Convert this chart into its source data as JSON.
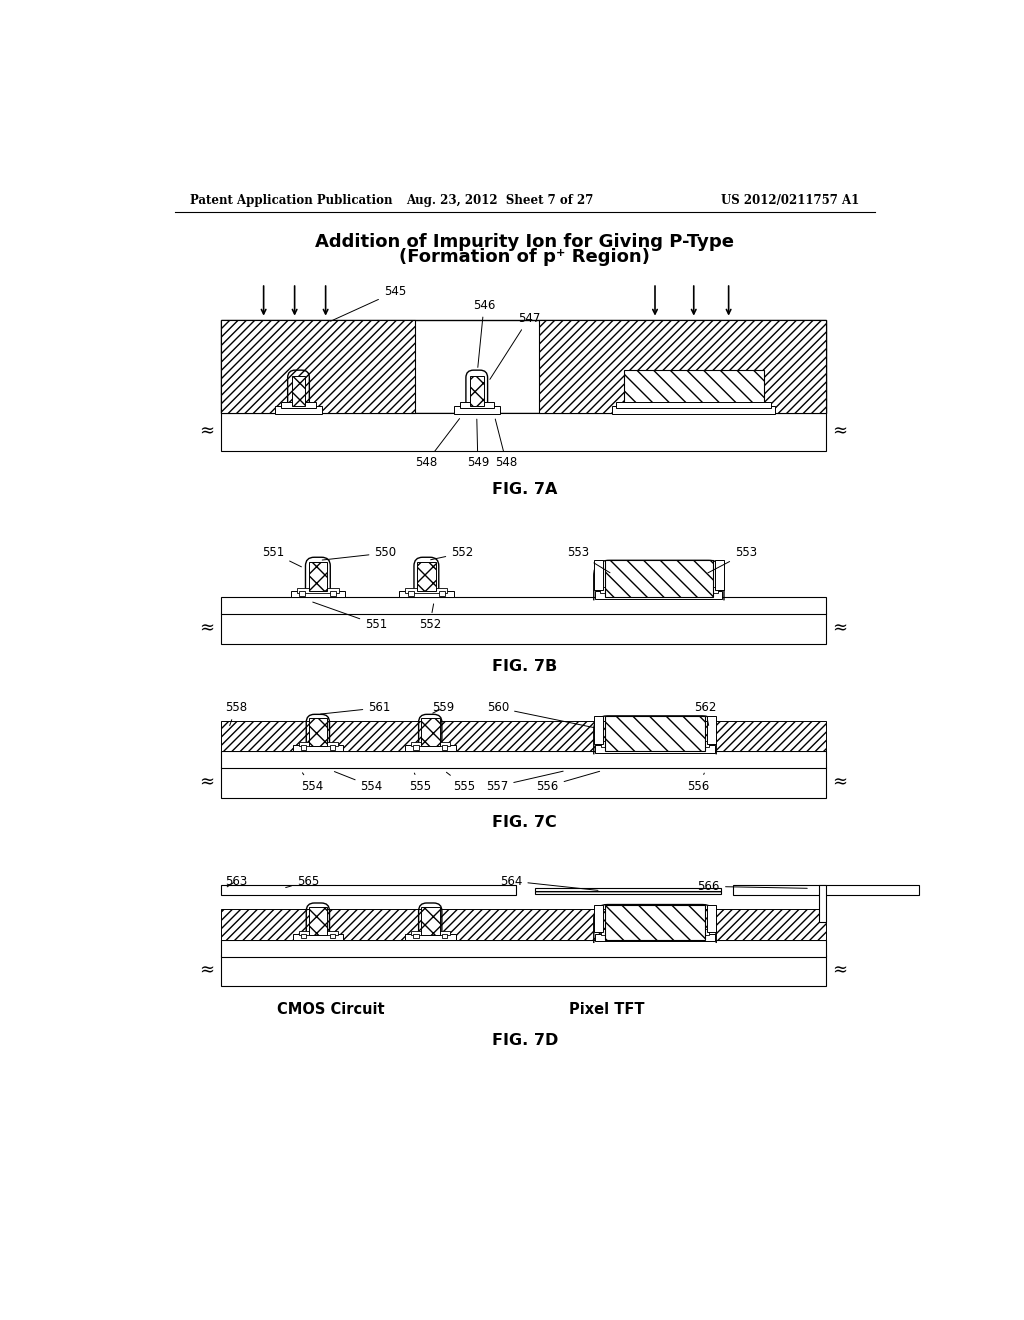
{
  "header_left": "Patent Application Publication",
  "header_mid": "Aug. 23, 2012  Sheet 7 of 27",
  "header_right": "US 2012/0211757 A1",
  "title_line1": "Addition of Impurity Ion for Giving P-Type",
  "title_line2": "(Formation of p⁺ Region)",
  "fig_labels": [
    "FIG. 7A",
    "FIG. 7B",
    "FIG. 7C",
    "FIG. 7D"
  ],
  "background": "#ffffff",
  "line_color": "#000000"
}
